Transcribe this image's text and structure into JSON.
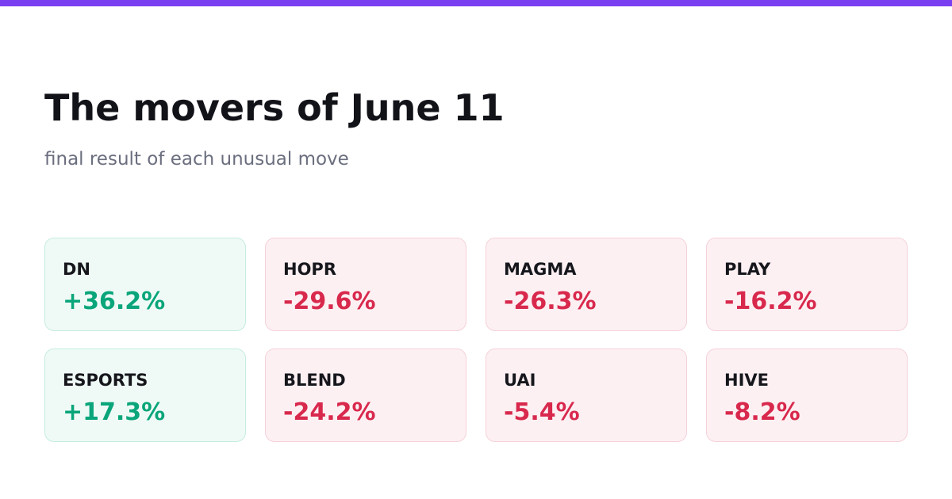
{
  "colors": {
    "accent": "#7b3ff2",
    "positive": "#0aa57a",
    "negative": "#d8294d"
  },
  "header": {
    "title": "The movers of June 11",
    "subtitle": "final result of each unusual move"
  },
  "movers": [
    {
      "ticker": "DN",
      "change": "+36.2%",
      "direction": "up"
    },
    {
      "ticker": "HOPR",
      "change": "-29.6%",
      "direction": "down"
    },
    {
      "ticker": "MAGMA",
      "change": "-26.3%",
      "direction": "down"
    },
    {
      "ticker": "PLAY",
      "change": "-16.2%",
      "direction": "down"
    },
    {
      "ticker": "ESPORTS",
      "change": "+17.3%",
      "direction": "up"
    },
    {
      "ticker": "BLEND",
      "change": "-24.2%",
      "direction": "down"
    },
    {
      "ticker": "UAI",
      "change": "-5.4%",
      "direction": "down"
    },
    {
      "ticker": "HIVE",
      "change": "-8.2%",
      "direction": "down"
    }
  ]
}
